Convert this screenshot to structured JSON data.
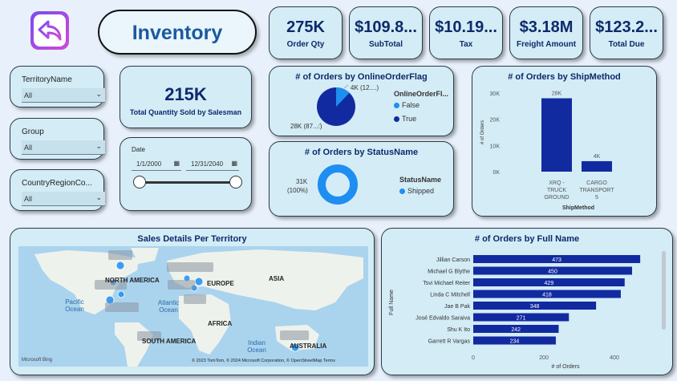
{
  "header": {
    "title": "Inventory",
    "back_icon": "back-arrow-icon"
  },
  "kpis": [
    {
      "value": "275K",
      "label": "Order Qty"
    },
    {
      "value": "$109.8...",
      "label": "SubTotal"
    },
    {
      "value": "$10.19...",
      "label": "Tax"
    },
    {
      "value": "$3.18M",
      "label": "Freight Amount"
    },
    {
      "value": "$123.2...",
      "label": "Total Due"
    }
  ],
  "total_sold": {
    "value": "215K",
    "label": "Total Quantity Sold by Salesman"
  },
  "slicers": {
    "territory": {
      "title": "TerritoryName",
      "value": "All"
    },
    "group": {
      "title": "Group",
      "value": "All"
    },
    "country": {
      "title": "CountryRegionCo...",
      "value": "All"
    },
    "date": {
      "title": "Date",
      "start": "1/1/2000",
      "end": "12/31/2040"
    }
  },
  "online_flag": {
    "title": "# of Orders by OnlineOrderFlag",
    "legend_title": "OnlineOrderFl...",
    "label_small": "4K (12....)",
    "label_large": "28K (87....)",
    "legend": [
      "False",
      "True"
    ]
  },
  "status": {
    "title": "# of Orders by StatusName",
    "legend_title": "StatusName",
    "label_value": "31K",
    "label_pct": "(100%)",
    "legend": [
      "Shipped"
    ]
  },
  "shipmethod": {
    "title": "# of Orders by ShipMethod",
    "ylabel": "# of Orders",
    "xlabel": "ShipMethod"
  },
  "map": {
    "title": "Sales Details Per Territory",
    "labels": {
      "north_america": "NORTH AMERICA",
      "europe": "EUROPE",
      "asia": "ASIA",
      "africa": "AFRICA",
      "south_america": "SOUTH AMERICA",
      "australia": "AUSTRALIA",
      "pacific": "Pacific Ocean",
      "atlantic": "Atlantic Ocean",
      "indian": "Indian Ocean"
    },
    "attribution": "© 2023 TomTom, © 2024 Microsoft Corporation, © OpenStreetMap  Terms",
    "brand": "Microsoft Bing"
  },
  "fullname": {
    "title": "# of Orders by Full Name",
    "ylabel": "Full Name",
    "xlabel": "# of Orders"
  },
  "chart_data": [
    {
      "type": "pie",
      "title": "# of Orders by OnlineOrderFlag",
      "categories": [
        "False",
        "True"
      ],
      "values": [
        4000,
        28000
      ],
      "colors": [
        "#1f8ef1",
        "#122aa0"
      ]
    },
    {
      "type": "pie",
      "title": "# of Orders by StatusName",
      "categories": [
        "Shipped"
      ],
      "values": [
        31000
      ],
      "colors": [
        "#1f8ef1"
      ]
    },
    {
      "type": "bar",
      "title": "# of Orders by ShipMethod",
      "categories": [
        "XRQ - TRUCK GROUND",
        "CARGO TRANSPORT 5"
      ],
      "values": [
        28000,
        4000
      ],
      "data_labels": [
        "28K",
        "4K"
      ],
      "yticks": [
        "0K",
        "10K",
        "20K",
        "30K"
      ],
      "ylim": [
        0,
        30000
      ],
      "xlabel": "ShipMethod",
      "ylabel": "# of Orders",
      "color": "#122aa0"
    },
    {
      "type": "bar",
      "orientation": "horizontal",
      "title": "# of Orders by Full Name",
      "categories": [
        "Jillian Carson",
        "Michael G Blythe",
        "Tsvi Michael Reiter",
        "Linda C Mitchell",
        "Jae B Pak",
        "José Edvaldo Saraiva",
        "Shu K Ito",
        "Garrett R Vargas"
      ],
      "values": [
        473,
        450,
        429,
        418,
        348,
        271,
        242,
        234
      ],
      "xticks": [
        "0",
        "200",
        "400"
      ],
      "xlim": [
        0,
        500
      ],
      "xlabel": "# of Orders",
      "ylabel": "Full Name",
      "color": "#122aa0"
    }
  ]
}
